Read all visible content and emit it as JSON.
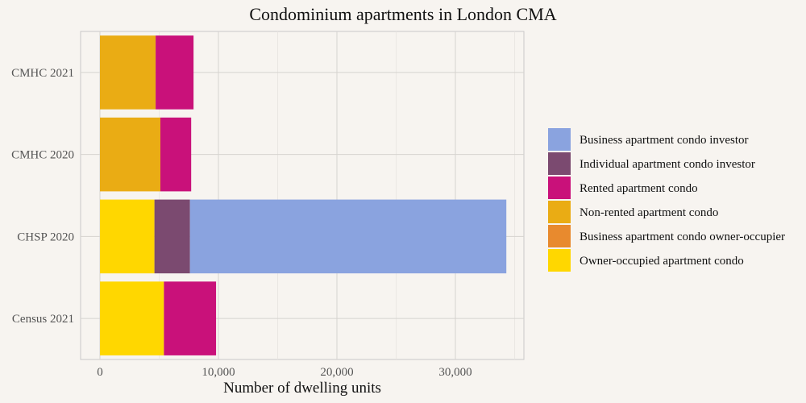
{
  "chart_data": {
    "type": "bar",
    "orientation": "horizontal",
    "stacked": true,
    "title": "Condominium apartments in London CMA",
    "xlabel": "Number of dwelling units",
    "ylabel": "",
    "xlim": [
      0,
      36000
    ],
    "x_ticks": [
      0,
      10000,
      20000,
      30000
    ],
    "x_tick_labels": [
      "0",
      "10,000",
      "20,000",
      "30,000"
    ],
    "categories": [
      "Census 2021",
      "CHSP 2020",
      "CMHC 2020",
      "CMHC 2021"
    ],
    "grid": true,
    "legend_position": "right",
    "series": [
      {
        "name": "Owner-occupied apartment condo",
        "color": "#FFD700",
        "values": [
          5400,
          4600,
          0,
          0
        ]
      },
      {
        "name": "Business apartment condo owner-occupier",
        "color": "#E88A2E",
        "values": [
          0,
          0,
          0,
          0
        ]
      },
      {
        "name": "Non-rented apartment condo",
        "color": "#EAAC14",
        "values": [
          0,
          0,
          5100,
          4700
        ]
      },
      {
        "name": "Rented apartment condo",
        "color": "#C9117A",
        "values": [
          4400,
          0,
          2600,
          3200
        ]
      },
      {
        "name": "Individual apartment condo investor",
        "color": "#7B4A70",
        "values": [
          0,
          3000,
          0,
          0
        ]
      },
      {
        "name": "Business apartment condo investor",
        "color": "#8AA3DF",
        "values": [
          0,
          26700,
          0,
          0
        ]
      }
    ],
    "legend_order": [
      "Business apartment condo investor",
      "Individual apartment condo investor",
      "Rented apartment condo",
      "Non-rented apartment condo",
      "Business apartment condo owner-occupier",
      "Owner-occupied apartment condo"
    ]
  }
}
